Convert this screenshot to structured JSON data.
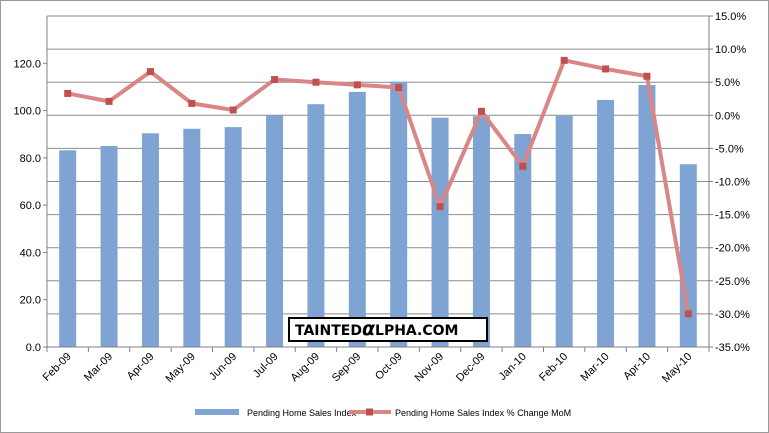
{
  "chart_data": {
    "type": "bar",
    "categories": [
      "Feb-09",
      "Mar-09",
      "Apr-09",
      "May-09",
      "Jun-09",
      "Jul-09",
      "Aug-09",
      "Sep-09",
      "Oct-09",
      "Nov-09",
      "Dec-09",
      "Jan-10",
      "Feb-10",
      "Mar-10",
      "Apr-10",
      "May-10"
    ],
    "series": [
      {
        "name": "Pending Home Sales Index",
        "type": "bar",
        "axis": "left",
        "color": "#7fa4d4",
        "values": [
          83.2,
          85.0,
          90.4,
          92.3,
          93.0,
          98.0,
          102.7,
          107.9,
          112.2,
          97.0,
          97.6,
          90.1,
          97.8,
          104.5,
          110.8,
          77.3
        ]
      },
      {
        "name": "Pending Home Sales Index % Change MoM",
        "type": "line",
        "axis": "right",
        "color": "#d98686",
        "marker_color": "#c0504d",
        "values": [
          3.3,
          2.1,
          6.6,
          1.8,
          0.8,
          5.4,
          5.0,
          4.6,
          4.2,
          -13.8,
          0.6,
          -7.7,
          8.3,
          7.0,
          5.9,
          -30.0
        ]
      }
    ],
    "y_left": {
      "ylim": [
        0,
        140
      ],
      "ticks": [
        0,
        20,
        40,
        60,
        80,
        100,
        120
      ],
      "tick_labels": [
        "0.0",
        "20.0",
        "40.0",
        "60.0",
        "80.0",
        "100.0",
        "120.0"
      ]
    },
    "y_right": {
      "ylim": [
        -35,
        15
      ],
      "ticks": [
        15,
        10,
        5,
        0,
        -5,
        -10,
        -15,
        -20,
        -25,
        -30,
        -35
      ],
      "tick_labels": [
        "15.0%",
        "10.0%",
        "5.0%",
        "0.0%",
        "-5.0%",
        "-10.0%",
        "-15.0%",
        "-20.0%",
        "-25.0%",
        "-30.0%",
        "-35.0%"
      ]
    },
    "grid": true,
    "legend": "bottom",
    "title": "",
    "xlabel": "",
    "ylabel": ""
  },
  "watermark": {
    "prefix": "TAINTED",
    "alpha_glyph": "α",
    "suffix": "LPHA.COM"
  }
}
